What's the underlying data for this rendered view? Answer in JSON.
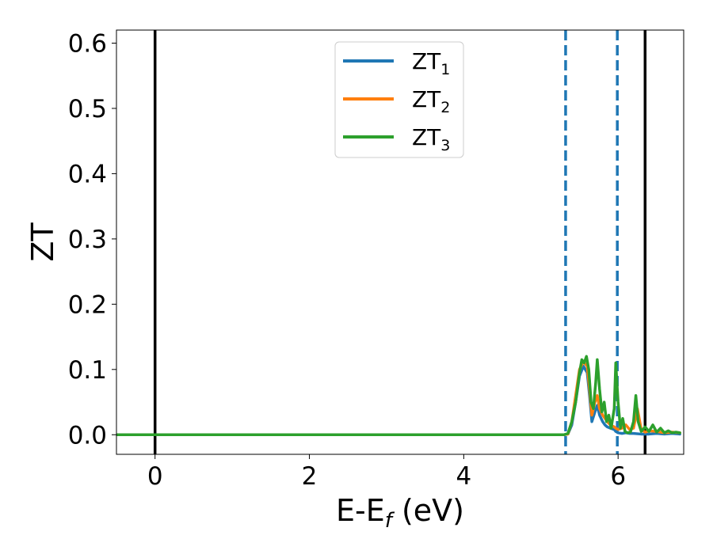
{
  "chart_data": {
    "type": "line",
    "xlabel_main": "E-E",
    "xlabel_sub": "f",
    "xlabel_unit": " (eV)",
    "ylabel": "ZT",
    "xlim": [
      -0.5,
      6.85
    ],
    "ylim": [
      -0.03,
      0.62
    ],
    "xticks": [
      0,
      2,
      4,
      6
    ],
    "xtick_labels": [
      "0",
      "2",
      "4",
      "6"
    ],
    "yticks": [
      0.0,
      0.1,
      0.2,
      0.3,
      0.4,
      0.5,
      0.6
    ],
    "ytick_labels": [
      "0.0",
      "0.1",
      "0.2",
      "0.3",
      "0.4",
      "0.5",
      "0.6"
    ],
    "grid": false,
    "legend_position": "top-center",
    "vertical_lines": [
      {
        "x": 0.0,
        "style": "solid",
        "color": "#000000"
      },
      {
        "x": 6.35,
        "style": "solid",
        "color": "#000000"
      },
      {
        "x": 5.32,
        "style": "dashed",
        "color": "#1f77b4"
      },
      {
        "x": 5.99,
        "style": "dashed",
        "color": "#1f77b4"
      }
    ],
    "series": [
      {
        "name": "ZT",
        "subscript": "1",
        "color": "#1f77b4",
        "points": [
          [
            -0.5,
            0
          ],
          [
            5.3,
            0
          ],
          [
            5.35,
            0.001
          ],
          [
            5.4,
            0.015
          ],
          [
            5.45,
            0.05
          ],
          [
            5.5,
            0.09
          ],
          [
            5.55,
            0.105
          ],
          [
            5.6,
            0.095
          ],
          [
            5.63,
            0.06
          ],
          [
            5.66,
            0.02
          ],
          [
            5.7,
            0.035
          ],
          [
            5.73,
            0.045
          ],
          [
            5.76,
            0.03
          ],
          [
            5.8,
            0.02
          ],
          [
            5.83,
            0.015
          ],
          [
            5.86,
            0.012
          ],
          [
            5.9,
            0.01
          ],
          [
            5.95,
            0.008
          ],
          [
            5.97,
            0.005
          ],
          [
            6.0,
            0.003
          ],
          [
            6.05,
            0.002
          ],
          [
            6.1,
            0.003
          ],
          [
            6.15,
            0.002
          ],
          [
            6.2,
            0.002
          ],
          [
            6.3,
            0.001
          ],
          [
            6.4,
            0.001
          ],
          [
            6.5,
            0.002
          ],
          [
            6.6,
            0.001
          ],
          [
            6.7,
            0.002
          ],
          [
            6.8,
            0.001
          ]
        ]
      },
      {
        "name": "ZT",
        "subscript": "2",
        "color": "#ff7f0e",
        "points": [
          [
            -0.5,
            0
          ],
          [
            5.3,
            0
          ],
          [
            5.35,
            0.001
          ],
          [
            5.4,
            0.02
          ],
          [
            5.45,
            0.06
          ],
          [
            5.5,
            0.1
          ],
          [
            5.55,
            0.112
          ],
          [
            5.6,
            0.105
          ],
          [
            5.63,
            0.07
          ],
          [
            5.66,
            0.03
          ],
          [
            5.7,
            0.05
          ],
          [
            5.73,
            0.06
          ],
          [
            5.76,
            0.04
          ],
          [
            5.8,
            0.03
          ],
          [
            5.83,
            0.025
          ],
          [
            5.86,
            0.02
          ],
          [
            5.9,
            0.015
          ],
          [
            5.95,
            0.012
          ],
          [
            5.97,
            0.01
          ],
          [
            6.0,
            0.008
          ],
          [
            6.05,
            0.01
          ],
          [
            6.1,
            0.015
          ],
          [
            6.15,
            0.008
          ],
          [
            6.2,
            0.01
          ],
          [
            6.25,
            0.04
          ],
          [
            6.3,
            0.008
          ],
          [
            6.35,
            0.004
          ],
          [
            6.4,
            0.006
          ],
          [
            6.5,
            0.005
          ],
          [
            6.6,
            0.003
          ],
          [
            6.7,
            0.004
          ],
          [
            6.8,
            0.003
          ]
        ]
      },
      {
        "name": "ZT",
        "subscript": "3",
        "color": "#2ca02c",
        "points": [
          [
            -0.5,
            0
          ],
          [
            5.3,
            0
          ],
          [
            5.35,
            0.002
          ],
          [
            5.4,
            0.02
          ],
          [
            5.45,
            0.05
          ],
          [
            5.5,
            0.095
          ],
          [
            5.53,
            0.115
          ],
          [
            5.56,
            0.11
          ],
          [
            5.59,
            0.12
          ],
          [
            5.62,
            0.1
          ],
          [
            5.65,
            0.05
          ],
          [
            5.68,
            0.04
          ],
          [
            5.71,
            0.08
          ],
          [
            5.73,
            0.115
          ],
          [
            5.76,
            0.07
          ],
          [
            5.79,
            0.035
          ],
          [
            5.82,
            0.05
          ],
          [
            5.85,
            0.02
          ],
          [
            5.88,
            0.03
          ],
          [
            5.91,
            0.01
          ],
          [
            5.95,
            0.04
          ],
          [
            5.97,
            0.11
          ],
          [
            6.0,
            0.05
          ],
          [
            6.03,
            0.01
          ],
          [
            6.06,
            0.025
          ],
          [
            6.09,
            0.005
          ],
          [
            6.12,
            0.003
          ],
          [
            6.16,
            0.004
          ],
          [
            6.2,
            0.02
          ],
          [
            6.23,
            0.06
          ],
          [
            6.26,
            0.02
          ],
          [
            6.3,
            0.005
          ],
          [
            6.35,
            0.012
          ],
          [
            6.4,
            0.005
          ],
          [
            6.45,
            0.015
          ],
          [
            6.5,
            0.004
          ],
          [
            6.55,
            0.01
          ],
          [
            6.6,
            0.003
          ],
          [
            6.65,
            0.006
          ],
          [
            6.7,
            0.003
          ],
          [
            6.75,
            0.004
          ],
          [
            6.8,
            0.003
          ]
        ]
      }
    ]
  }
}
